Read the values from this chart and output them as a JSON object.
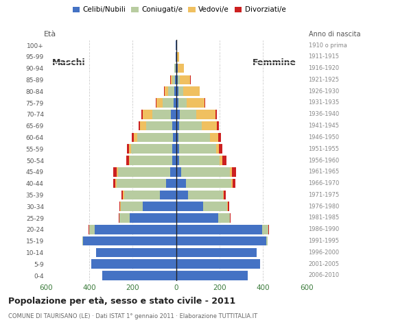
{
  "age_groups": [
    "0-4",
    "5-9",
    "10-14",
    "15-19",
    "20-24",
    "25-29",
    "30-34",
    "35-39",
    "40-44",
    "45-49",
    "50-54",
    "55-59",
    "60-64",
    "65-69",
    "70-74",
    "75-79",
    "80-84",
    "85-89",
    "90-94",
    "95-99",
    "100+"
  ],
  "birth_years": [
    "2006-2010",
    "2001-2005",
    "1996-2000",
    "1991-1995",
    "1986-1990",
    "1981-1985",
    "1976-1980",
    "1971-1975",
    "1966-1970",
    "1961-1965",
    "1956-1960",
    "1951-1955",
    "1946-1950",
    "1941-1945",
    "1936-1940",
    "1931-1935",
    "1926-1930",
    "1921-1925",
    "1916-1920",
    "1911-1915",
    "1910 o prima"
  ],
  "colors": {
    "single": "#4472c4",
    "married": "#b8cca0",
    "widowed": "#f0c060",
    "divorced": "#cc2020"
  },
  "male_single": [
    340,
    390,
    370,
    430,
    375,
    215,
    155,
    75,
    45,
    28,
    18,
    18,
    15,
    18,
    25,
    12,
    8,
    5,
    3,
    2,
    1
  ],
  "male_married": [
    0,
    0,
    0,
    2,
    25,
    45,
    100,
    165,
    230,
    240,
    195,
    190,
    165,
    120,
    85,
    50,
    28,
    12,
    4,
    0,
    0
  ],
  "male_widowed": [
    0,
    0,
    0,
    0,
    1,
    1,
    2,
    4,
    4,
    5,
    5,
    8,
    15,
    28,
    45,
    28,
    18,
    8,
    2,
    0,
    0
  ],
  "male_divorced": [
    0,
    0,
    0,
    0,
    2,
    2,
    3,
    7,
    10,
    18,
    12,
    10,
    8,
    8,
    5,
    4,
    2,
    2,
    0,
    0,
    0
  ],
  "female_single": [
    330,
    388,
    372,
    415,
    395,
    195,
    125,
    55,
    45,
    22,
    14,
    14,
    12,
    14,
    18,
    12,
    10,
    8,
    6,
    4,
    2
  ],
  "female_married": [
    0,
    0,
    0,
    5,
    28,
    52,
    110,
    160,
    210,
    225,
    185,
    170,
    145,
    105,
    75,
    38,
    22,
    8,
    2,
    0,
    0
  ],
  "female_widowed": [
    0,
    0,
    0,
    0,
    2,
    2,
    3,
    4,
    5,
    10,
    14,
    14,
    38,
    68,
    88,
    80,
    75,
    48,
    28,
    10,
    2
  ],
  "female_divorced": [
    0,
    0,
    0,
    0,
    2,
    2,
    5,
    10,
    12,
    20,
    18,
    14,
    10,
    10,
    5,
    4,
    3,
    2,
    0,
    0,
    0
  ],
  "xlim": 600,
  "title": "Popolazione per età, sesso e stato civile - 2011",
  "subtitle": "COMUNE DI TAURISANO (LE) · Dati ISTAT 1° gennaio 2011 · Elaborazione TUTTITALIA.IT",
  "age_label": "Età",
  "birth_year_label": "Anno di nascita",
  "maschi_label": "Maschi",
  "femmine_label": "Femmine",
  "legend_labels": [
    "Celibi/Nubili",
    "Coniugati/e",
    "Vedovi/e",
    "Divorziati/e"
  ],
  "bg_color": "#ffffff"
}
